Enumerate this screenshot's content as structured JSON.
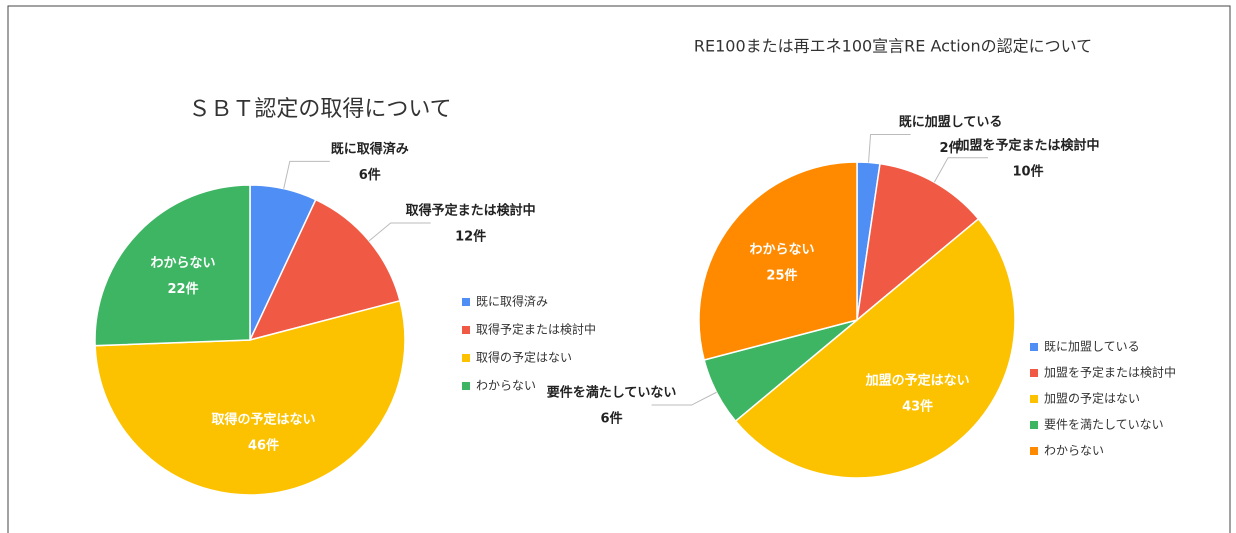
{
  "chart_data": [
    {
      "type": "pie",
      "title": "ＳＢＴ認定の取得について",
      "categories": [
        "既に取得済み",
        "取得予定または検討中",
        "取得の予定はない",
        "わからない"
      ],
      "values": [
        6,
        12,
        46,
        22
      ],
      "value_labels": [
        "6件",
        "12件",
        "46件",
        "22件"
      ],
      "colors": [
        "#4f8ff5",
        "#f05a44",
        "#fcc200",
        "#3db563"
      ],
      "legend": "right"
    },
    {
      "type": "pie",
      "title": "RE100または再エネ100宣言RE Actionの認定について",
      "categories": [
        "既に加盟している",
        "加盟を予定または検討中",
        "加盟の予定はない",
        "要件を満たしていない",
        "わからない"
      ],
      "values": [
        2,
        10,
        43,
        6,
        25
      ],
      "value_labels": [
        "2件",
        "10件",
        "43件",
        "6件",
        "25件"
      ],
      "colors": [
        "#4f8ff5",
        "#f05a44",
        "#fcc200",
        "#3db563",
        "#ff8a00"
      ],
      "legend": "right"
    }
  ]
}
